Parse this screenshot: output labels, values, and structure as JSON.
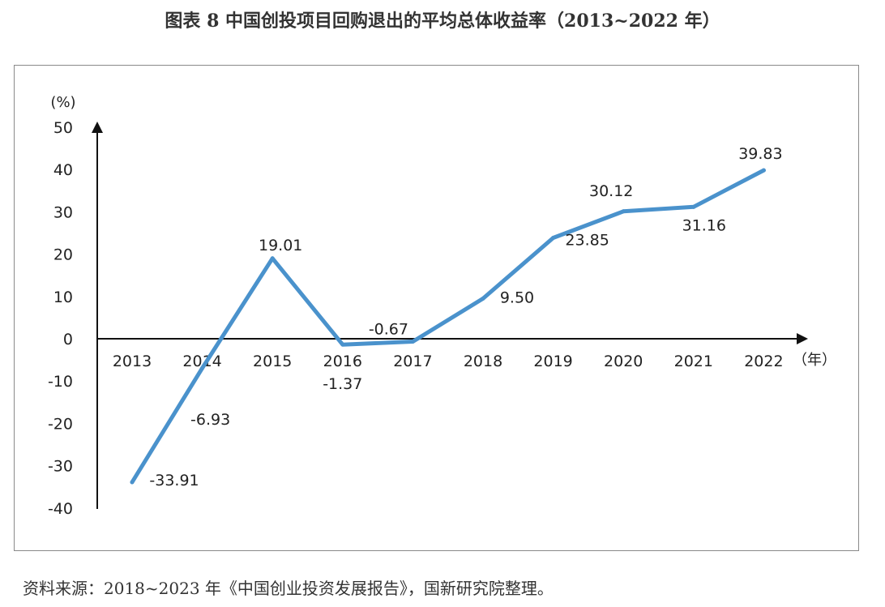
{
  "title": "图表 8  中国创投项目回购退出的平均总体收益率（2013~2022 年）",
  "source": "资料来源：2018~2023 年《中国创业投资发展报告》，国新研究院整理。",
  "colors": {
    "line": "#4a92cc",
    "axis": "#111111",
    "frame": "#8a8a8a"
  },
  "chart_data": {
    "type": "line",
    "categories": [
      "2013",
      "2014",
      "2015",
      "2016",
      "2017",
      "2018",
      "2019",
      "2020",
      "2021",
      "2022"
    ],
    "series": [
      {
        "values": [
          -33.91,
          -6.93,
          19.01,
          -1.37,
          -0.67,
          9.5,
          23.85,
          30.12,
          31.16,
          39.83
        ]
      }
    ],
    "data_labels": [
      "-33.91",
      "-6.93",
      "19.01",
      "-1.37",
      "-0.67",
      "9.50",
      "23.85",
      "30.12",
      "31.16",
      "39.83"
    ],
    "y_ticks": [
      "50",
      "40",
      "30",
      "20",
      "10",
      "0",
      "-10",
      "-20",
      "-30",
      "-40"
    ],
    "ylim": [
      -40,
      50
    ],
    "ylabel": "(%)",
    "xlabel": "（年）",
    "grid": false,
    "legend": "none"
  }
}
